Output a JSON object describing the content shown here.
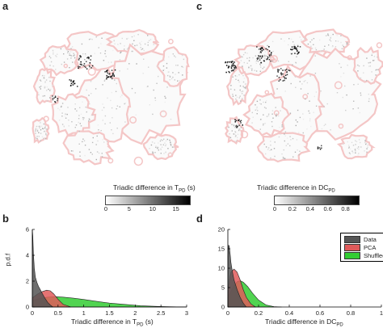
{
  "panels": {
    "a": {
      "letter": "a"
    },
    "b": {
      "letter": "b"
    },
    "c": {
      "letter": "c"
    },
    "d": {
      "letter": "d"
    }
  },
  "colors": {
    "outline": "#f4c6c6",
    "data": "#555555",
    "pca": "#e05a5a",
    "shuffled": "#33cc33"
  },
  "colorbar_a": {
    "title_main": "Triadic difference in T",
    "title_sub": "PD",
    "title_suffix": " (s)",
    "ticks": [
      "0",
      "5",
      "10",
      "15"
    ],
    "range": [
      0,
      18
    ]
  },
  "colorbar_c": {
    "title_main": "Triadic difference in DC",
    "title_sub": "PD",
    "ticks": [
      "0",
      "0.2",
      "0.4",
      "0.6",
      "0.8"
    ],
    "range": [
      0,
      0.95
    ]
  },
  "chart_data": [
    {
      "type": "area",
      "panel": "b",
      "ylabel": "p.d.f",
      "xlabel_main": "Triadic difference in T",
      "xlabel_sub": "PD",
      "xlabel_suffix": " (s)",
      "xlim": [
        0,
        3
      ],
      "ylim": [
        0,
        6
      ],
      "xticks": [
        "0",
        "0.5",
        "1",
        "1.5",
        "2",
        "2.5",
        "3"
      ],
      "yticks": [
        "0",
        "2",
        "4",
        "6"
      ],
      "series": [
        {
          "name": "Shuffled",
          "color": "#33cc33",
          "x": [
            0,
            0.05,
            0.1,
            0.2,
            0.3,
            0.45,
            0.6,
            0.8,
            1.0,
            1.2,
            1.5,
            1.8,
            2.1,
            2.4,
            2.6,
            2.8,
            3.0
          ],
          "y": [
            0.5,
            0.55,
            0.62,
            0.7,
            0.76,
            0.8,
            0.76,
            0.68,
            0.58,
            0.46,
            0.3,
            0.2,
            0.1,
            0.05,
            0.03,
            0.015,
            0.01
          ]
        },
        {
          "name": "PCA",
          "color": "#e05a5a",
          "x": [
            0,
            0.05,
            0.1,
            0.2,
            0.28,
            0.35,
            0.42,
            0.5,
            0.6,
            0.75
          ],
          "y": [
            0.7,
            0.85,
            1.0,
            1.2,
            1.3,
            1.25,
            1.0,
            0.6,
            0.2,
            0.0
          ]
        },
        {
          "name": "Data",
          "color": "#555555",
          "x": [
            0,
            0.01,
            0.02,
            0.04,
            0.06,
            0.09,
            0.12,
            0.16,
            0.2,
            0.25,
            0.3,
            0.35,
            0.4
          ],
          "y": [
            6.0,
            5.5,
            4.2,
            3.0,
            2.3,
            1.9,
            1.6,
            1.3,
            1.0,
            0.65,
            0.35,
            0.15,
            0.0
          ]
        }
      ]
    },
    {
      "type": "area",
      "panel": "d",
      "xlabel_main": "Triadic difference in DC",
      "xlabel_sub": "PD",
      "xlim": [
        0,
        1
      ],
      "ylim": [
        0,
        20
      ],
      "xticks": [
        "0",
        "0.2",
        "0.4",
        "0.6",
        "0.8",
        "1"
      ],
      "yticks": [
        "0",
        "5",
        "10",
        "15",
        "20"
      ],
      "legend": [
        "Data",
        "PCA",
        "Shuffled"
      ],
      "legend_position": "top-right",
      "series": [
        {
          "name": "Shuffled",
          "color": "#33cc33",
          "x": [
            0,
            0.02,
            0.04,
            0.06,
            0.08,
            0.1,
            0.13,
            0.16,
            0.2,
            0.25,
            0.3,
            0.35
          ],
          "y": [
            2.5,
            4.0,
            5.5,
            6.5,
            6.8,
            6.4,
            5.2,
            3.6,
            1.8,
            0.5,
            0.1,
            0.0
          ]
        },
        {
          "name": "PCA",
          "color": "#e05a5a",
          "x": [
            0,
            0.01,
            0.02,
            0.04,
            0.06,
            0.08,
            0.1,
            0.12,
            0.15,
            0.18
          ],
          "y": [
            4.0,
            7.0,
            9.0,
            9.8,
            9.0,
            7.0,
            4.5,
            2.5,
            0.8,
            0.0
          ]
        },
        {
          "name": "Data",
          "color": "#555555",
          "x": [
            0,
            0.005,
            0.01,
            0.015,
            0.02,
            0.03,
            0.04,
            0.06,
            0.08,
            0.1,
            0.12
          ],
          "y": [
            13.0,
            16.0,
            15.5,
            13.5,
            11.5,
            9.0,
            7.0,
            4.5,
            2.5,
            1.0,
            0.0
          ]
        }
      ]
    }
  ]
}
